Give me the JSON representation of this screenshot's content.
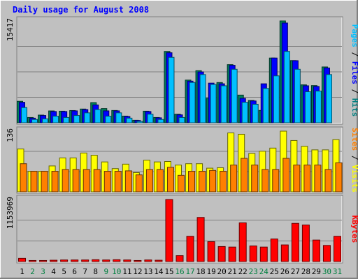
{
  "chart_data": {
    "type": "bar",
    "title": "Daily usage for August 2008",
    "x": [
      "1",
      "2",
      "3",
      "4",
      "5",
      "6",
      "7",
      "8",
      "9",
      "10",
      "11",
      "12",
      "13",
      "14",
      "15",
      "16",
      "17",
      "18",
      "19",
      "20",
      "21",
      "22",
      "23",
      "24",
      "25",
      "26",
      "27",
      "28",
      "29",
      "30",
      "31"
    ],
    "weekend_days": [
      "2",
      "3",
      "9",
      "10",
      "16",
      "17",
      "23",
      "24",
      "30",
      "31"
    ],
    "panels": [
      {
        "id": "hits",
        "ymax_label": "15417",
        "ylim": [
          0,
          15417
        ],
        "label_parts": [
          {
            "text": "Pages",
            "color": "#00c0ff"
          },
          {
            "text": " / ",
            "color": "#000000"
          },
          {
            "text": "Files",
            "color": "#0000ff"
          },
          {
            "text": " / ",
            "color": "#000000"
          },
          {
            "text": "Hits",
            "color": "#008080"
          }
        ],
        "series": [
          {
            "name": "Hits",
            "color": "#00805c",
            "values": [
              3250,
              800,
              1160,
              1790,
              1750,
              1850,
              2080,
              3050,
              2150,
              1860,
              1010,
              380,
              1750,
              800,
              10800,
              1300,
              6460,
              7880,
              3700,
              6090,
              8800,
              4190,
              3380,
              1870,
              9800,
              15417,
              9420,
              5740,
              5630,
              8450,
              0
            ]
          },
          {
            "name": "Files",
            "color": "#0000ff",
            "values": [
              3100,
              700,
              1100,
              1700,
              1700,
              1800,
              2000,
              2700,
              1800,
              1800,
              950,
              350,
              1700,
              750,
              10600,
              1200,
              6300,
              7700,
              6000,
              5900,
              8700,
              3700,
              3300,
              5900,
              9800,
              15100,
              9400,
              5600,
              5500,
              8300,
              0
            ]
          },
          {
            "name": "Pages",
            "color": "#00c0ff",
            "values": [
              2300,
              500,
              600,
              1000,
              800,
              1100,
              1500,
              2000,
              1000,
              1500,
              700,
              200,
              1300,
              500,
              9900,
              800,
              6100,
              7300,
              5800,
              5600,
              8100,
              3100,
              2800,
              5200,
              7100,
              10800,
              8100,
              4700,
              4800,
              7300,
              0
            ]
          }
        ]
      },
      {
        "id": "visits",
        "ymax_label": "136",
        "ylim": [
          0,
          136
        ],
        "label_parts": [
          {
            "text": "Sites",
            "color": "#ff8000"
          },
          {
            "text": " / ",
            "color": "#000000"
          },
          {
            "text": "Visits",
            "color": "#ffff00"
          }
        ],
        "series": [
          {
            "name": "Visits",
            "color": "#ffff00",
            "values": [
              96,
              46,
              46,
              58,
              76,
              76,
              87,
              82,
              67,
              52,
              62,
              43,
              71,
              67,
              68,
              60,
              63,
              63,
              53,
              54,
              132,
              129,
              86,
              91,
              98,
              136,
              115,
              102,
              94,
              94,
              117
            ]
          },
          {
            "name": "Sites",
            "color": "#ff8000",
            "values": [
              63,
              46,
              46,
              46,
              50,
              50,
              50,
              50,
              46,
              46,
              47,
              38,
              50,
              50,
              55,
              37,
              46,
              46,
              48,
              46,
              60,
              75,
              60,
              50,
              50,
              75,
              60,
              60,
              60,
              50,
              65
            ]
          }
        ]
      },
      {
        "id": "kbytes",
        "ymax_label": "1153969",
        "ylim": [
          0,
          1153969
        ],
        "label_parts": [
          {
            "text": "KBytes",
            "color": "#ff0000"
          }
        ],
        "series": [
          {
            "name": "KBytes",
            "color": "#ff0000",
            "values": [
              60000,
              20000,
              20000,
              25000,
              30000,
              30000,
              30000,
              35000,
              30000,
              35000,
              30000,
              20000,
              30000,
              25000,
              1153969,
              110000,
              470000,
              820000,
              370000,
              280000,
              270000,
              720000,
              290000,
              270000,
              420000,
              310000,
              710000,
              680000,
              400000,
              300000,
              470000
            ]
          }
        ]
      }
    ]
  }
}
